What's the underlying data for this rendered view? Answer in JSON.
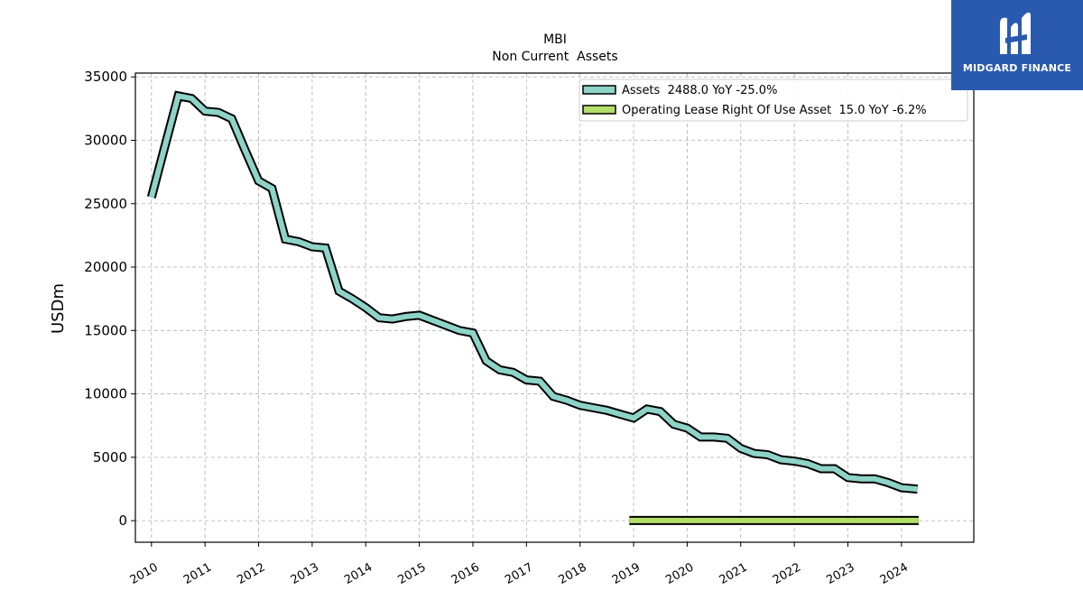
{
  "chart_data": {
    "type": "line",
    "title": "MBI",
    "subtitle": "Non Current  Assets",
    "ylabel": "USDm",
    "xlabel": "",
    "ylim": [
      -1700,
      35300
    ],
    "xlim": [
      2009.7,
      2025.35
    ],
    "yticks": [
      0,
      5000,
      10000,
      15000,
      20000,
      25000,
      30000,
      35000
    ],
    "xticks": [
      "2010",
      "2011",
      "2012",
      "2013",
      "2014",
      "2015",
      "2016",
      "2017",
      "2018",
      "2019",
      "2020",
      "2021",
      "2022",
      "2023",
      "2024"
    ],
    "grid": true,
    "legend_position": "top-right",
    "series": [
      {
        "name": "Assets  2488.0 YoY -25.0%",
        "color": "#8dd3c7",
        "x": [
          2010.0,
          2010.25,
          2010.5,
          2010.75,
          2011.0,
          2011.25,
          2011.5,
          2011.75,
          2012.0,
          2012.25,
          2012.5,
          2012.75,
          2013.0,
          2013.25,
          2013.5,
          2013.75,
          2014.0,
          2014.25,
          2014.5,
          2014.75,
          2015.0,
          2015.25,
          2015.5,
          2015.75,
          2016.0,
          2016.25,
          2016.5,
          2016.75,
          2017.0,
          2017.25,
          2017.5,
          2017.75,
          2018.0,
          2018.25,
          2018.5,
          2018.75,
          2019.0,
          2019.25,
          2019.5,
          2019.75,
          2020.0,
          2020.25,
          2020.5,
          2020.75,
          2021.0,
          2021.25,
          2021.5,
          2021.75,
          2022.0,
          2022.25,
          2022.5,
          2022.75,
          2023.0,
          2023.25,
          2023.5,
          2023.75,
          2024.0,
          2024.3
        ],
        "values": [
          25500,
          29500,
          33500,
          33300,
          32300,
          32200,
          31700,
          29200,
          26800,
          26200,
          22200,
          22000,
          21600,
          21500,
          18100,
          17500,
          16800,
          16000,
          15900,
          16100,
          16200,
          15800,
          15400,
          15000,
          14800,
          12600,
          11900,
          11700,
          11100,
          11000,
          9800,
          9500,
          9100,
          8900,
          8700,
          8400,
          8100,
          8800,
          8600,
          7600,
          7300,
          6600,
          6600,
          6500,
          5700,
          5300,
          5200,
          4800,
          4700,
          4500,
          4100,
          4100,
          3400,
          3300,
          3300,
          3000,
          2600,
          2488
        ]
      },
      {
        "name": "Operating Lease Right Of Use Asset  15.0 YoY -6.2%",
        "color": "#b3de69",
        "x": [
          2018.92,
          2024.32
        ],
        "values": [
          16,
          15
        ]
      }
    ]
  },
  "logo": {
    "text": "MIDGARD FINANCE",
    "color": "#2a5ab0"
  }
}
